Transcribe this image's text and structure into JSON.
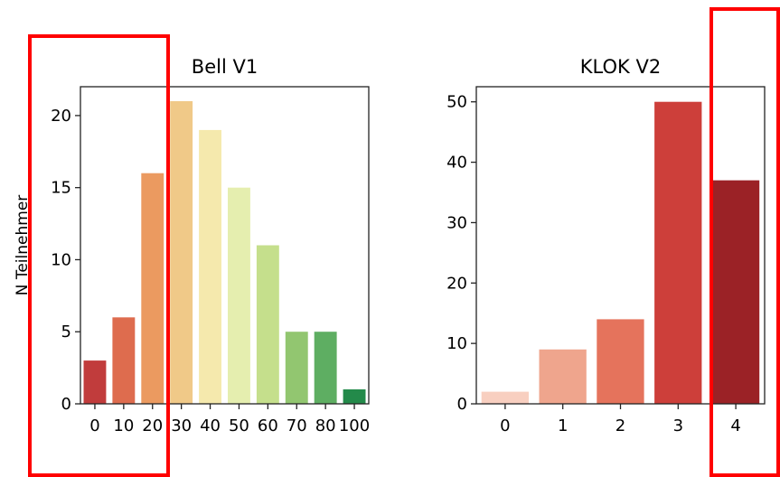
{
  "chart_data": [
    {
      "type": "bar",
      "title": "Bell V1",
      "ylabel": "N Teilnehmer",
      "xlabel": "",
      "categories": [
        "0",
        "10",
        "20",
        "30",
        "40",
        "50",
        "60",
        "70",
        "80",
        "100"
      ],
      "values": [
        3,
        6,
        16,
        21,
        19,
        15,
        11,
        5,
        5,
        1
      ],
      "colors": [
        "#c13c3c",
        "#de6c4e",
        "#eb9a60",
        "#f0c988",
        "#f5e9ad",
        "#e5eeaf",
        "#c5df8c",
        "#92c670",
        "#5eae62",
        "#238a4a"
      ],
      "ylim": [
        0,
        22
      ],
      "yticks": [
        0,
        5,
        10,
        15,
        20
      ],
      "grid": false
    },
    {
      "type": "bar",
      "title": "KLOK V2",
      "ylabel": "",
      "xlabel": "",
      "categories": [
        "0",
        "1",
        "2",
        "3",
        "4"
      ],
      "values": [
        2,
        9,
        14,
        50,
        37
      ],
      "colors": [
        "#f8cfc0",
        "#efa58d",
        "#e5735c",
        "#cd3f3a",
        "#9b2226"
      ],
      "ylim": [
        0,
        52.5
      ],
      "yticks": [
        0,
        10,
        20,
        30,
        40,
        50
      ],
      "grid": false
    }
  ],
  "annotations": {
    "highlight_color": "#ff0000"
  }
}
